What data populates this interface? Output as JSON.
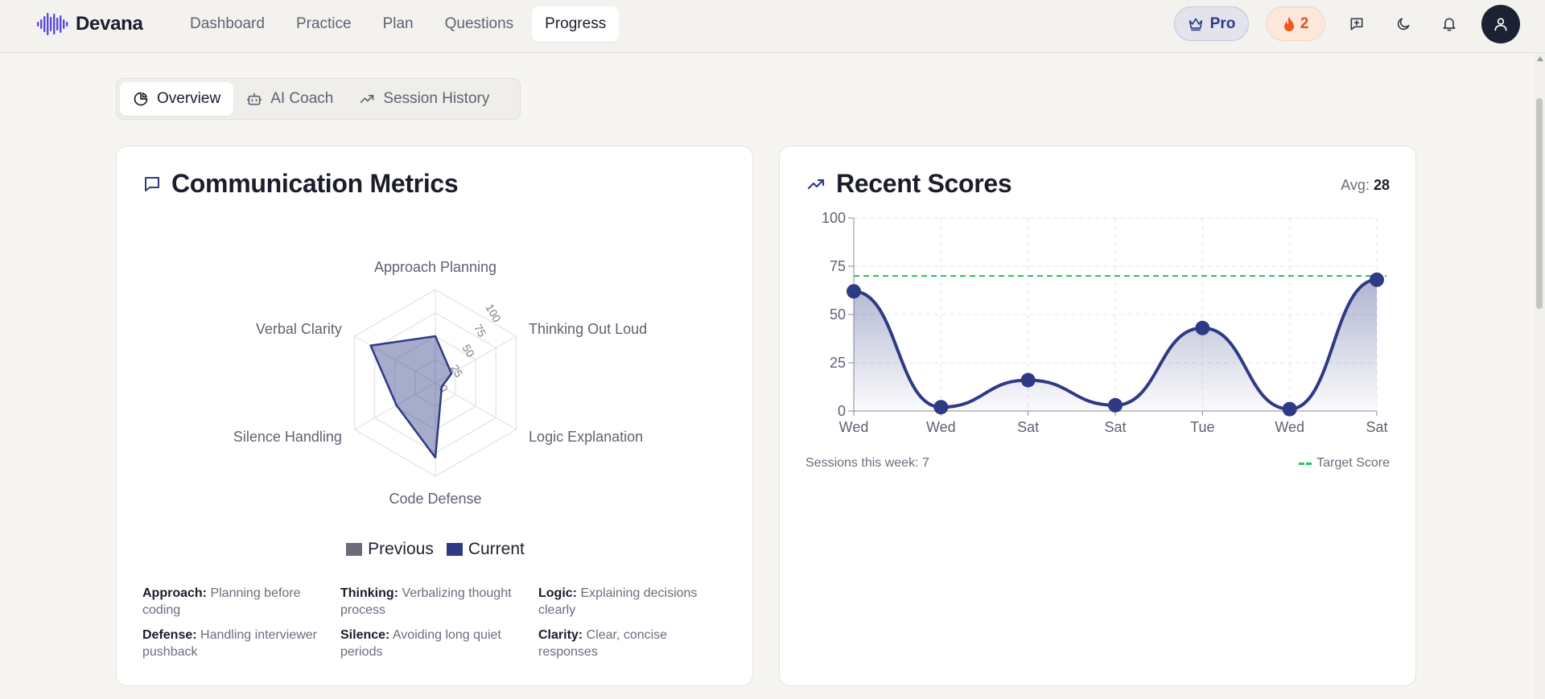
{
  "app": {
    "name": "Devana"
  },
  "nav": {
    "items": [
      {
        "label": "Dashboard",
        "active": false
      },
      {
        "label": "Practice",
        "active": false
      },
      {
        "label": "Plan",
        "active": false
      },
      {
        "label": "Questions",
        "active": false
      },
      {
        "label": "Progress",
        "active": true
      }
    ]
  },
  "header": {
    "pro_label": "Pro",
    "streak_count": "2",
    "icons": [
      "feedback-icon",
      "moon-icon",
      "bell-icon",
      "user-icon"
    ]
  },
  "subtabs": [
    {
      "label": "Overview",
      "icon": "pie-chart-icon",
      "active": true
    },
    {
      "label": "AI Coach",
      "icon": "bot-icon",
      "active": false
    },
    {
      "label": "Session History",
      "icon": "trending-up-icon",
      "active": false
    }
  ],
  "communication": {
    "title": "Communication Metrics",
    "legend": {
      "previous": "Previous",
      "current": "Current"
    },
    "descriptions": [
      {
        "term": "Approach:",
        "text": "Planning before coding"
      },
      {
        "term": "Thinking:",
        "text": "Verbalizing thought process"
      },
      {
        "term": "Logic:",
        "text": "Explaining decisions clearly"
      },
      {
        "term": "Defense:",
        "text": "Handling interviewer pushback"
      },
      {
        "term": "Silence:",
        "text": "Avoiding long quiet periods"
      },
      {
        "term": "Clarity:",
        "text": "Clear, concise responses"
      }
    ]
  },
  "recent": {
    "title": "Recent Scores",
    "avg_label": "Avg:",
    "avg_value": "28",
    "sessions_text": "Sessions this week: 7",
    "target_label": "Target Score"
  },
  "chart_data": [
    {
      "type": "radar",
      "axes": [
        "Approach Planning",
        "Thinking Out Loud",
        "Logic Explanation",
        "Code Defense",
        "Silence Handling",
        "Verbal Clarity"
      ],
      "ticks": [
        "0",
        "25",
        "50",
        "75",
        "100"
      ],
      "range": [
        0,
        100
      ],
      "series": [
        {
          "name": "Previous",
          "values": [
            0,
            0,
            0,
            0,
            0,
            0
          ]
        },
        {
          "name": "Current",
          "values": [
            50,
            20,
            8,
            80,
            48,
            80
          ]
        }
      ],
      "legend": "bottom",
      "colors": {
        "previous": "#6b6b7b",
        "current": "#2f3a84"
      }
    },
    {
      "type": "line",
      "x": [
        "Wed",
        "Wed",
        "Sat",
        "Sat",
        "Tue",
        "Wed",
        "Sat"
      ],
      "values": [
        62,
        2,
        16,
        3,
        43,
        1,
        68
      ],
      "yticks": [
        "0",
        "25",
        "50",
        "75",
        "100"
      ],
      "ylim": [
        0,
        100
      ],
      "target": 70,
      "grid": true,
      "colors": {
        "line": "#2f3a84",
        "target": "#22c55e"
      }
    }
  ]
}
